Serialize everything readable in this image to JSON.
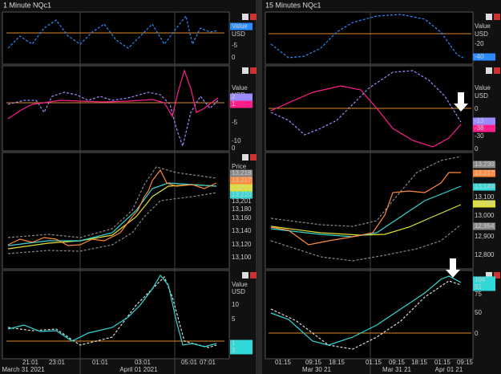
{
  "left": {
    "title": "1 Minute NQc1",
    "panes": [
      {
        "labels": [
          "Value",
          "USD",
          "-5",
          "0"
        ]
      },
      {
        "labels": [
          "Value",
          "USD",
          "2",
          "1",
          "-5",
          "-10",
          "0"
        ]
      },
      {
        "labels": [
          "Price",
          "13,218",
          "13,217",
          "13,211",
          "13,210",
          "13,201",
          "13,180",
          "13,160",
          "13,140",
          "13,120",
          "13,100"
        ]
      },
      {
        "labels": [
          "Value",
          "USD",
          "10",
          "5",
          "1",
          "3"
        ]
      }
    ],
    "time_labels": [
      "21:01",
      "23:01",
      "01:01",
      "03:01",
      "05:01",
      "07:01"
    ],
    "date_labels": [
      "March 31 2021",
      "April 01 2021"
    ]
  },
  "right": {
    "title": "15 Minutes NQc1",
    "panes": [
      {
        "labels": [
          "Value",
          "USD",
          "-20",
          "-40"
        ]
      },
      {
        "labels": [
          "Value",
          "USD",
          "0",
          "-13",
          "-38",
          "-30",
          "0"
        ]
      },
      {
        "labels": [
          "13,230",
          "13,217",
          "13,149",
          "13,100",
          "13,059",
          "13,000",
          "12,954",
          "12,900",
          "12,800"
        ]
      },
      {
        "labels": [
          "104",
          "91",
          "75",
          "50",
          "0"
        ]
      }
    ],
    "time_labels": [
      "01:15",
      "09:15",
      "18:15",
      "01:15",
      "09:15",
      "18:15",
      "01:15",
      "09:15"
    ],
    "date_labels": [
      "Mar 30 21",
      "Mar 31 21",
      "Apr 01 21"
    ]
  }
}
